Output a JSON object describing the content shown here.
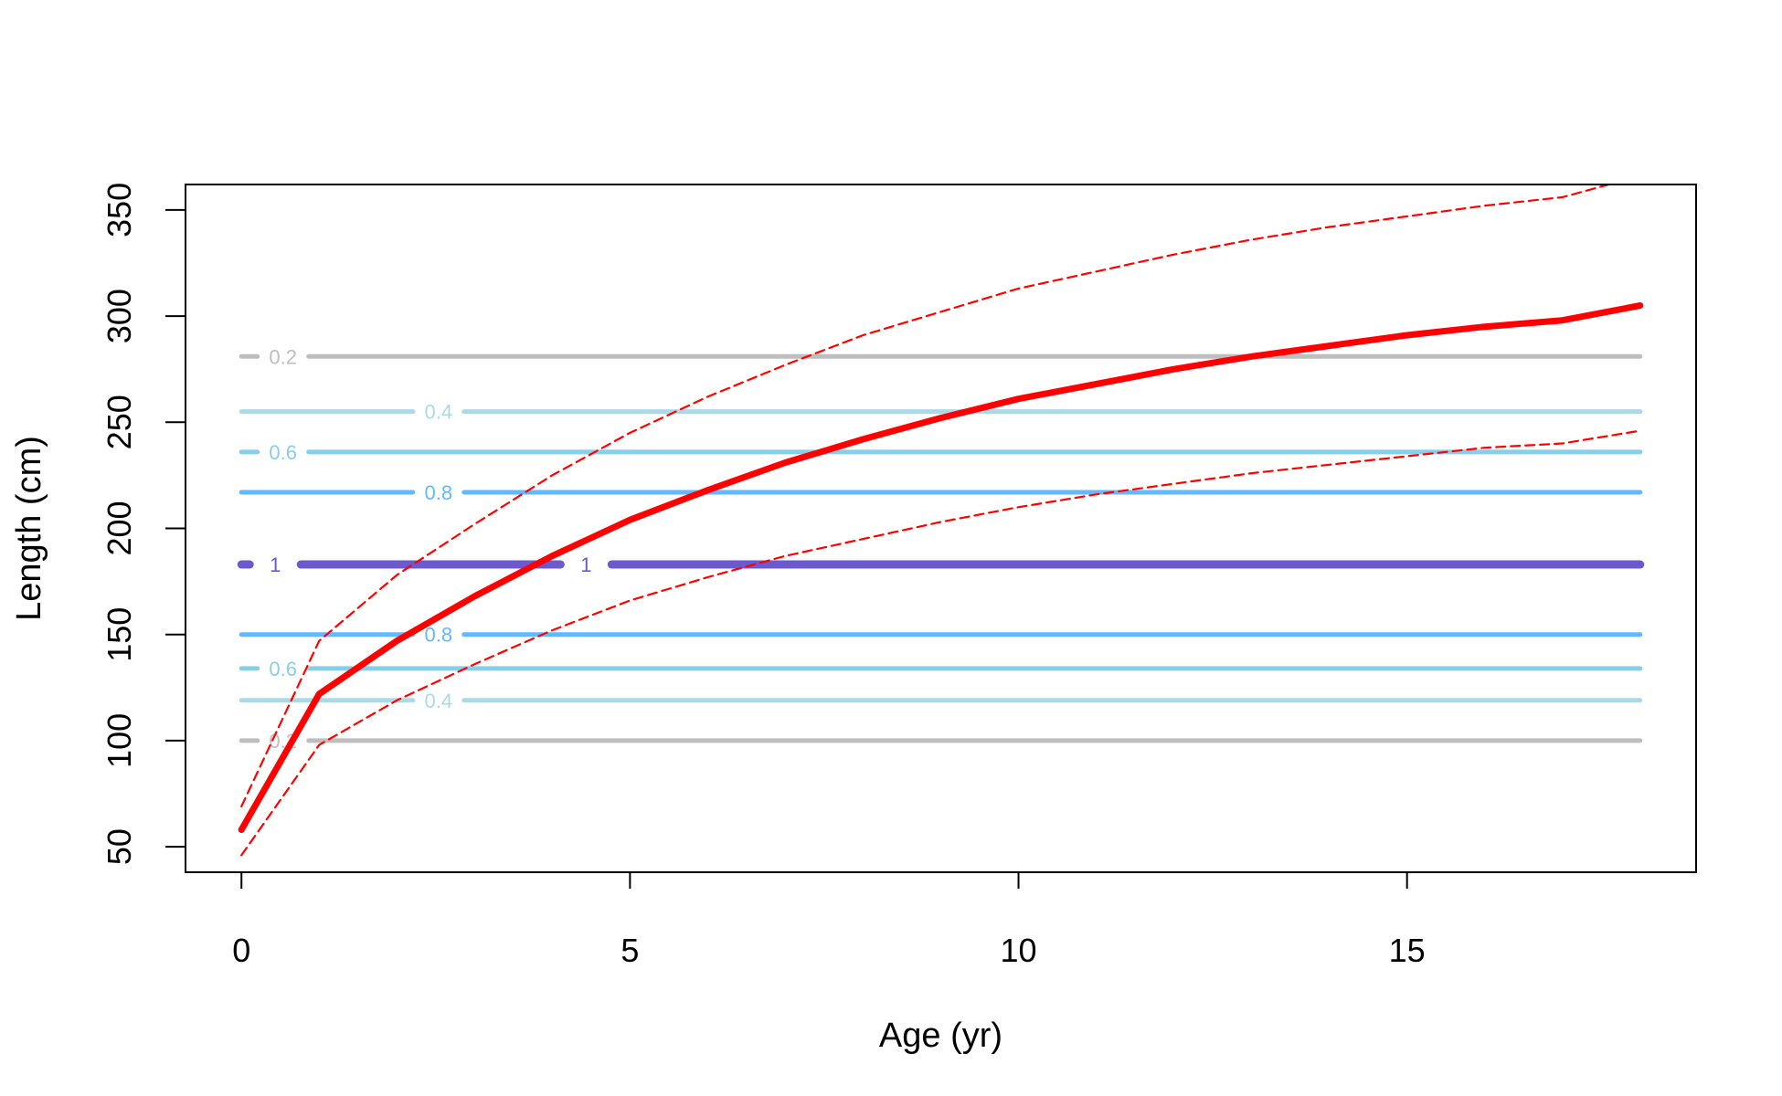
{
  "chart_data": {
    "type": "line",
    "xlabel": "Age (yr)",
    "ylabel": "Length (cm)",
    "xlim": [
      -0.72,
      18.72
    ],
    "ylim": [
      38,
      362
    ],
    "x_ticks": [
      0,
      5,
      10,
      15
    ],
    "y_ticks": [
      50,
      100,
      150,
      200,
      250,
      300,
      350
    ],
    "grid": false,
    "series": [
      {
        "role": "mean",
        "color": "#ff0000",
        "style": "solid",
        "x": [
          0,
          1,
          2,
          3,
          4,
          5,
          6,
          7,
          8,
          9,
          10,
          11,
          12,
          13,
          14,
          15,
          16,
          17,
          18
        ],
        "y": [
          58,
          122,
          147,
          168,
          187,
          204,
          218,
          231,
          242,
          252,
          261,
          268,
          275,
          281,
          286,
          291,
          295,
          298,
          305
        ]
      },
      {
        "role": "upper",
        "color": "#ff0000",
        "style": "dashed",
        "x": [
          0,
          1,
          2,
          3,
          4,
          5,
          6,
          7,
          8,
          9,
          10,
          11,
          12,
          13,
          14,
          15,
          16,
          17,
          18
        ],
        "y": [
          69,
          147,
          178,
          202,
          225,
          245,
          262,
          277,
          291,
          302,
          313,
          321,
          329,
          336,
          342,
          347,
          352,
          356,
          366
        ]
      },
      {
        "role": "lower",
        "color": "#ff0000",
        "style": "dashed",
        "x": [
          0,
          1,
          2,
          3,
          4,
          5,
          6,
          7,
          8,
          9,
          10,
          11,
          12,
          13,
          14,
          15,
          16,
          17,
          18
        ],
        "y": [
          46,
          98,
          119,
          136,
          152,
          166,
          177,
          187,
          195,
          203,
          210,
          216,
          221,
          226,
          230,
          234,
          238,
          240,
          246
        ]
      }
    ],
    "contours": [
      {
        "level": 1,
        "label": "1",
        "y": 183,
        "color": "#6a5acd",
        "label_positions": [
          0.2,
          4.2
        ]
      },
      {
        "level": 0.8,
        "label": "0.8",
        "y": 217,
        "color": "#63b8ff",
        "label_positions": [
          2.3
        ]
      },
      {
        "level": 0.8,
        "label": "0.8",
        "y": 150,
        "color": "#63b8ff",
        "label_positions": [
          2.3
        ]
      },
      {
        "level": 0.6,
        "label": "0.6",
        "y": 236,
        "color": "#87ceeb",
        "label_positions": [
          0.3
        ]
      },
      {
        "level": 0.6,
        "label": "0.6",
        "y": 134,
        "color": "#87ceeb",
        "label_positions": [
          0.3
        ]
      },
      {
        "level": 0.4,
        "label": "0.4",
        "y": 255,
        "color": "#add8e6",
        "label_positions": [
          2.3
        ]
      },
      {
        "level": 0.4,
        "label": "0.4",
        "y": 119,
        "color": "#add8e6",
        "label_positions": [
          2.3
        ]
      },
      {
        "level": 0.2,
        "label": "0.2",
        "y": 281,
        "color": "#bebebe",
        "label_positions": [
          0.3
        ]
      },
      {
        "level": 0.2,
        "label": "0.2",
        "y": 100,
        "color": "#bebebe",
        "label_positions": [
          0.3
        ]
      }
    ],
    "contour_x_range": [
      0,
      18
    ]
  }
}
